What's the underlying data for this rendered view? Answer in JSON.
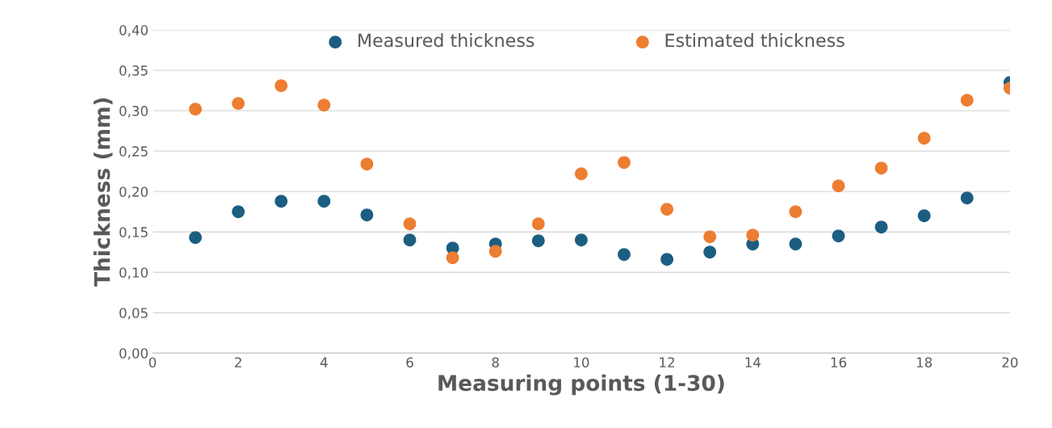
{
  "chart_data": {
    "type": "scatter",
    "xlabel": "Measuring points (1-30)",
    "ylabel": "Thickness (mm)",
    "x": [
      1,
      2,
      3,
      4,
      5,
      6,
      7,
      8,
      9,
      10,
      11,
      12,
      13,
      14,
      15,
      16,
      17,
      18,
      19,
      20
    ],
    "series": [
      {
        "name": "Measured thickness",
        "color": "#1b5e82",
        "values": [
          0.143,
          0.175,
          0.188,
          0.188,
          0.171,
          0.14,
          0.13,
          0.135,
          0.139,
          0.14,
          0.122,
          0.116,
          0.125,
          0.135,
          0.135,
          0.145,
          0.156,
          0.17,
          0.192,
          0.335
        ]
      },
      {
        "name": "Estimated thickness",
        "color": "#ed7d31",
        "values": [
          0.302,
          0.309,
          0.331,
          0.307,
          0.234,
          0.16,
          0.118,
          0.126,
          0.16,
          0.222,
          0.236,
          0.178,
          0.144,
          0.146,
          0.175,
          0.207,
          0.229,
          0.266,
          0.313,
          0.328
        ]
      }
    ],
    "xlim": [
      0,
      20
    ],
    "xticks": [
      0,
      2,
      4,
      6,
      8,
      10,
      12,
      14,
      16,
      18,
      20
    ],
    "ylim": [
      0,
      0.4
    ],
    "yticks": [
      {
        "value": 0,
        "label": "0,00"
      },
      {
        "value": 0.05,
        "label": "0,05"
      },
      {
        "value": 0.1,
        "label": "0,10"
      },
      {
        "value": 0.15,
        "label": "0,15"
      },
      {
        "value": 0.2,
        "label": "0,20"
      },
      {
        "value": 0.25,
        "label": "0,25"
      },
      {
        "value": 0.3,
        "label": "0,30"
      },
      {
        "value": 0.35,
        "label": "0,35"
      },
      {
        "value": 0.4,
        "label": "0,40"
      }
    ],
    "grid": "y",
    "legend": "top",
    "marker": "circle"
  }
}
